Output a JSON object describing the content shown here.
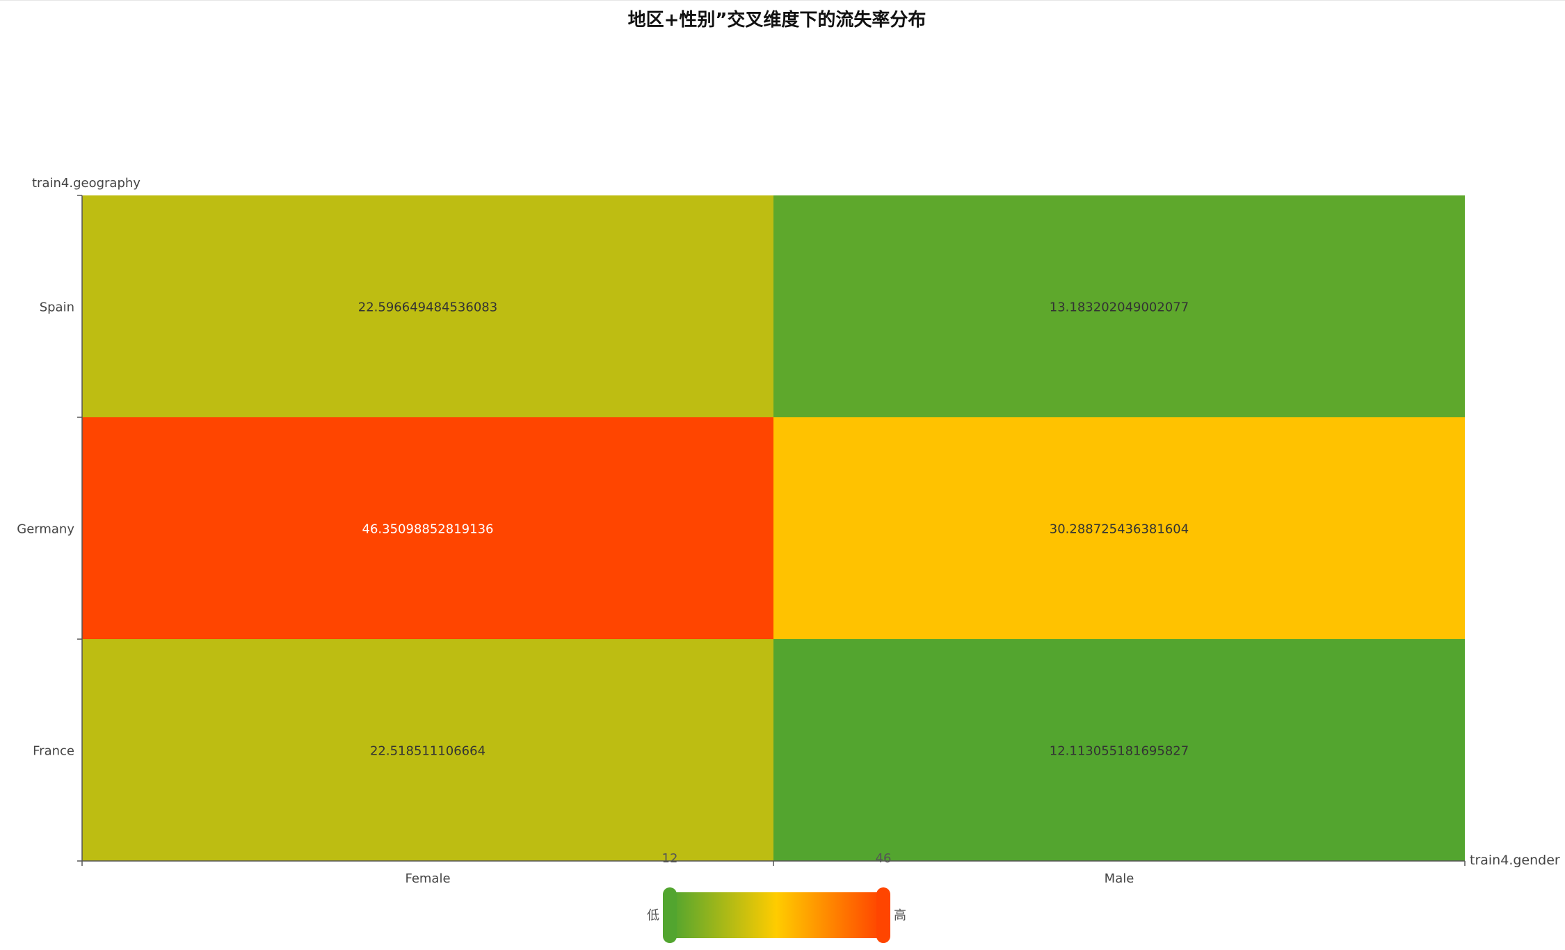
{
  "chart_data": {
    "type": "heatmap",
    "title": "地区+性别”交叉维度下的流失率分布",
    "xlabel": "train4.gender",
    "ylabel": "train4.geography",
    "x_categories": [
      "Female",
      "Male"
    ],
    "y_categories": [
      "France",
      "Germany",
      "Spain"
    ],
    "cells": [
      {
        "x": "Female",
        "y": "Spain",
        "value": "22.596649484536083"
      },
      {
        "x": "Male",
        "y": "Spain",
        "value": "13.183202049002077"
      },
      {
        "x": "Female",
        "y": "Germany",
        "value": "46.35098852819136"
      },
      {
        "x": "Male",
        "y": "Germany",
        "value": "30.288725436381604"
      },
      {
        "x": "Female",
        "y": "France",
        "value": "22.518511106664"
      },
      {
        "x": "Male",
        "y": "France",
        "value": "12.113055181695827"
      }
    ],
    "visual_map": {
      "min_label": "12",
      "max_label": "46",
      "min": 12,
      "max": 46,
      "low_text": "低",
      "high_text": "高",
      "colors": [
        "#52a52f",
        "#ffcc00",
        "#ff4500"
      ]
    },
    "grid": false,
    "legend_position": "bottom-center"
  }
}
